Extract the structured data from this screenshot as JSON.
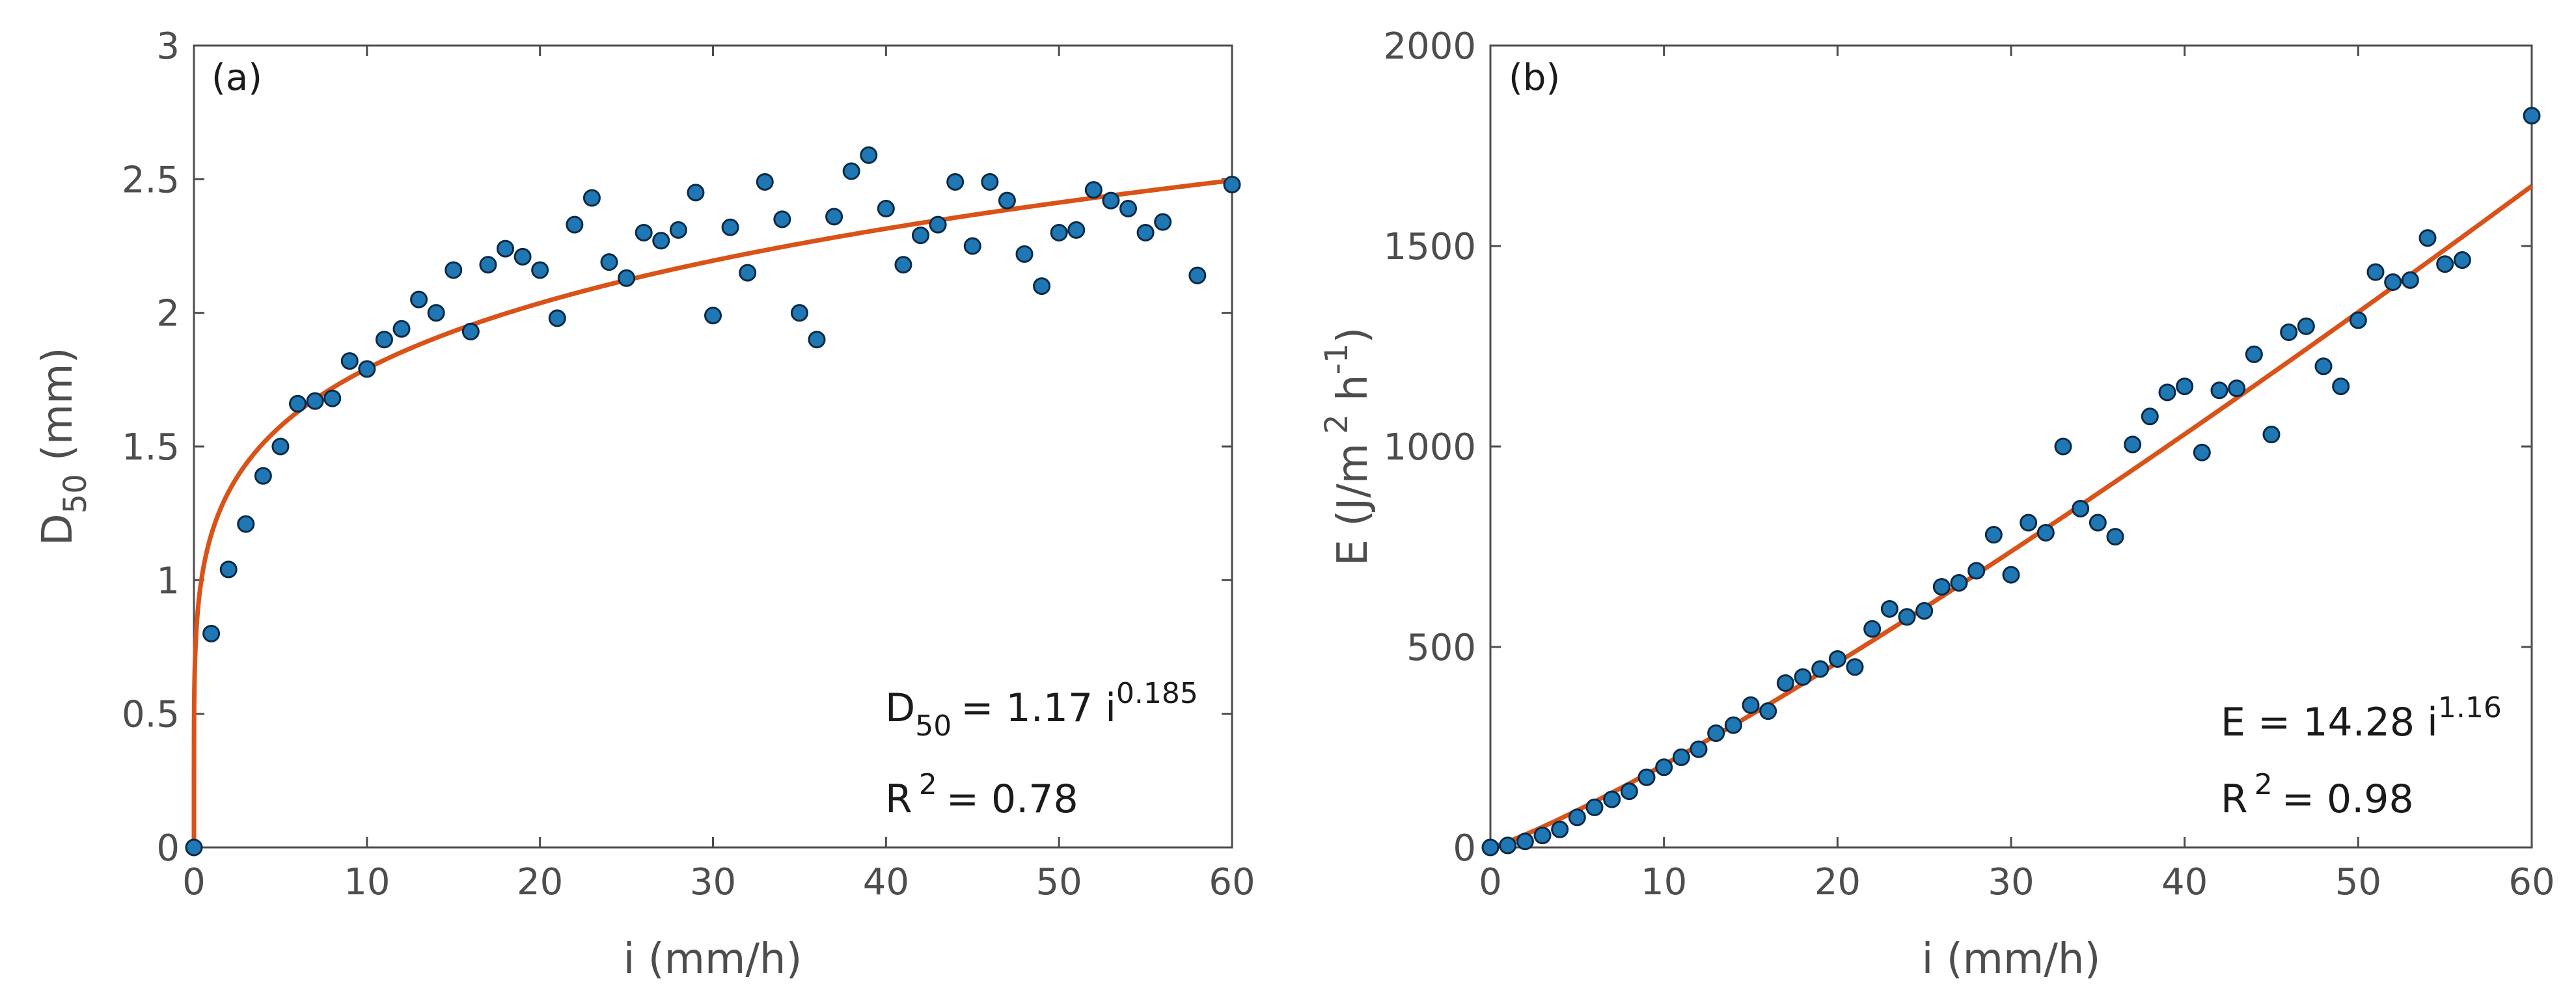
{
  "chart_data": [
    {
      "type": "scatter",
      "panel_label": "(a)",
      "xlabel": "i (mm/h)",
      "ylabel_main": "D",
      "ylabel_sub": "50",
      "ylabel_unit": "(mm)",
      "xlim": [
        0,
        60
      ],
      "ylim": [
        0,
        3
      ],
      "xticks": [
        "0",
        "10",
        "20",
        "30",
        "40",
        "50",
        "60"
      ],
      "yticks": [
        "0",
        "0.5",
        "1",
        "1.5",
        "2",
        "2.5",
        "3"
      ],
      "points": [
        [
          0,
          0.0
        ],
        [
          1,
          0.8
        ],
        [
          2,
          1.04
        ],
        [
          3,
          1.21
        ],
        [
          4,
          1.39
        ],
        [
          5,
          1.5
        ],
        [
          6,
          1.66
        ],
        [
          7,
          1.67
        ],
        [
          8,
          1.68
        ],
        [
          9,
          1.82
        ],
        [
          10,
          1.79
        ],
        [
          11,
          1.9
        ],
        [
          12,
          1.94
        ],
        [
          13,
          2.05
        ],
        [
          14,
          2.0
        ],
        [
          15,
          2.16
        ],
        [
          16,
          1.93
        ],
        [
          17,
          2.18
        ],
        [
          18,
          2.24
        ],
        [
          19,
          2.21
        ],
        [
          20,
          2.16
        ],
        [
          21,
          1.98
        ],
        [
          22,
          2.33
        ],
        [
          23,
          2.43
        ],
        [
          24,
          2.19
        ],
        [
          25,
          2.13
        ],
        [
          26,
          2.3
        ],
        [
          27,
          2.27
        ],
        [
          28,
          2.31
        ],
        [
          29,
          2.45
        ],
        [
          30,
          1.99
        ],
        [
          31,
          2.32
        ],
        [
          32,
          2.15
        ],
        [
          33,
          2.49
        ],
        [
          34,
          2.35
        ],
        [
          35,
          2.0
        ],
        [
          36,
          1.9
        ],
        [
          37,
          2.36
        ],
        [
          38,
          2.53
        ],
        [
          39,
          2.59
        ],
        [
          40,
          2.39
        ],
        [
          41,
          2.18
        ],
        [
          42,
          2.29
        ],
        [
          43,
          2.33
        ],
        [
          44,
          2.49
        ],
        [
          45,
          2.25
        ],
        [
          46,
          2.49
        ],
        [
          47,
          2.42
        ],
        [
          48,
          2.22
        ],
        [
          49,
          2.1
        ],
        [
          50,
          2.3
        ],
        [
          51,
          2.31
        ],
        [
          52,
          2.46
        ],
        [
          53,
          2.42
        ],
        [
          54,
          2.39
        ],
        [
          55,
          2.3
        ],
        [
          56,
          2.34
        ],
        [
          58,
          2.14
        ],
        [
          60,
          2.48
        ]
      ],
      "fit": {
        "a": 1.17,
        "b": 0.185
      },
      "equation": {
        "lhs": "D",
        "lhs_sub": "50",
        "rhs": "= 1.17 i",
        "exp": "0.185"
      },
      "r2": {
        "lhs": "R",
        "exp": "2",
        "rhs": "= 0.78"
      }
    },
    {
      "type": "scatter",
      "panel_label": "(b)",
      "xlabel": "i (mm/h)",
      "ylabel_main": "E (J/m",
      "ylabel_exp1": "2",
      "ylabel_mid": " h",
      "ylabel_exp2": "-1",
      "ylabel_end": ")",
      "xlim": [
        0,
        60
      ],
      "ylim": [
        0,
        2000
      ],
      "xticks": [
        "0",
        "10",
        "20",
        "30",
        "40",
        "50",
        "60"
      ],
      "yticks": [
        "0",
        "500",
        "1000",
        "1500",
        "2000"
      ],
      "points": [
        [
          0,
          0
        ],
        [
          1,
          5
        ],
        [
          2,
          15
        ],
        [
          3,
          30
        ],
        [
          4,
          45
        ],
        [
          5,
          75
        ],
        [
          6,
          100
        ],
        [
          7,
          120
        ],
        [
          8,
          140
        ],
        [
          9,
          175
        ],
        [
          10,
          200
        ],
        [
          11,
          225
        ],
        [
          12,
          245
        ],
        [
          13,
          285
        ],
        [
          14,
          305
        ],
        [
          15,
          355
        ],
        [
          16,
          340
        ],
        [
          17,
          410
        ],
        [
          18,
          425
        ],
        [
          19,
          445
        ],
        [
          20,
          470
        ],
        [
          21,
          450
        ],
        [
          22,
          545
        ],
        [
          23,
          595
        ],
        [
          24,
          575
        ],
        [
          25,
          590
        ],
        [
          26,
          650
        ],
        [
          27,
          660
        ],
        [
          28,
          690
        ],
        [
          29,
          780
        ],
        [
          30,
          680
        ],
        [
          31,
          810
        ],
        [
          32,
          785
        ],
        [
          33,
          1000
        ],
        [
          34,
          845
        ],
        [
          35,
          810
        ],
        [
          36,
          775
        ],
        [
          37,
          1005
        ],
        [
          38,
          1075
        ],
        [
          39,
          1135
        ],
        [
          40,
          1150
        ],
        [
          41,
          985
        ],
        [
          42,
          1140
        ],
        [
          43,
          1145
        ],
        [
          44,
          1230
        ],
        [
          45,
          1030
        ],
        [
          46,
          1285
        ],
        [
          47,
          1300
        ],
        [
          48,
          1200
        ],
        [
          49,
          1150
        ],
        [
          50,
          1315
        ],
        [
          51,
          1435
        ],
        [
          52,
          1410
        ],
        [
          53,
          1415
        ],
        [
          54,
          1520
        ],
        [
          55,
          1455
        ],
        [
          56,
          1465
        ],
        [
          60,
          1825
        ]
      ],
      "fit": {
        "a": 14.28,
        "b": 1.16
      },
      "equation": {
        "lhs": "E = 14.28 i",
        "exp": "1.16"
      },
      "r2": {
        "lhs": "R",
        "exp": "2",
        "rhs": "= 0.98"
      }
    }
  ],
  "colors": {
    "point_fill": "#1f77b4",
    "point_stroke": "#0b2a45",
    "fit_line": "#d95319",
    "axis": "#4d4d4d"
  }
}
